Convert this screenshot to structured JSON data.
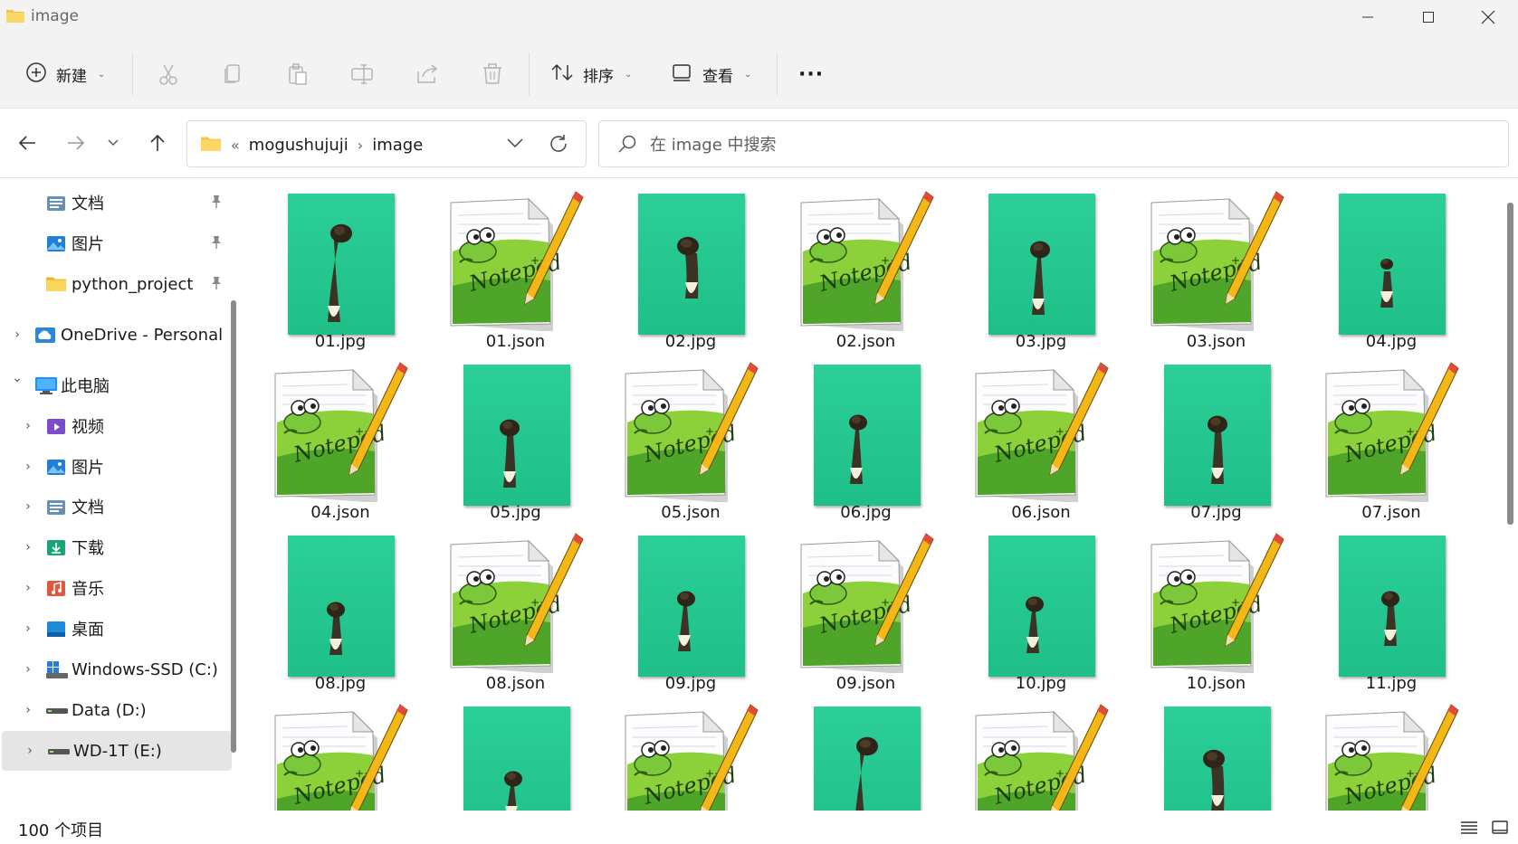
{
  "window": {
    "title": "image"
  },
  "toolbar": {
    "new_label": "新建",
    "sort_label": "排序",
    "view_label": "查看",
    "more_label": "···"
  },
  "address": {
    "overflow": "«",
    "crumbs": [
      "mogushujuji",
      "image"
    ]
  },
  "search": {
    "placeholder": "在 image 中搜索"
  },
  "nav": {
    "items": [
      {
        "label": "文档",
        "icon": "documents-icon",
        "pinned": true,
        "expandable": false
      },
      {
        "label": "图片",
        "icon": "pictures-icon",
        "pinned": true,
        "expandable": false
      },
      {
        "label": "python_project",
        "icon": "folder-icon",
        "pinned": true,
        "expandable": false
      },
      {
        "label": "OneDrive - Personal",
        "icon": "onedrive-icon",
        "pinned": false,
        "expandable": true
      },
      {
        "label": "此电脑",
        "icon": "this-pc-icon",
        "pinned": false,
        "expandable": true,
        "expanded": true
      },
      {
        "label": "视频",
        "icon": "videos-icon",
        "pinned": false,
        "expandable": true
      },
      {
        "label": "图片",
        "icon": "pictures-icon",
        "pinned": false,
        "expandable": true
      },
      {
        "label": "文档",
        "icon": "documents-icon",
        "pinned": false,
        "expandable": true
      },
      {
        "label": "下载",
        "icon": "downloads-icon",
        "pinned": false,
        "expandable": true
      },
      {
        "label": "音乐",
        "icon": "music-icon",
        "pinned": false,
        "expandable": true
      },
      {
        "label": "桌面",
        "icon": "desktop-icon",
        "pinned": false,
        "expandable": true
      },
      {
        "label": "Windows-SSD (C:)",
        "icon": "windows-drive-icon",
        "pinned": false,
        "expandable": true
      },
      {
        "label": "Data (D:)",
        "icon": "drive-icon",
        "pinned": false,
        "expandable": true
      },
      {
        "label": "WD-1T (E:)",
        "icon": "drive-icon",
        "pinned": false,
        "expandable": true,
        "selected": true
      }
    ]
  },
  "files": [
    {
      "name": "01.jpg",
      "type": "jpg"
    },
    {
      "name": "01.json",
      "type": "json"
    },
    {
      "name": "02.jpg",
      "type": "jpg"
    },
    {
      "name": "02.json",
      "type": "json"
    },
    {
      "name": "03.jpg",
      "type": "jpg"
    },
    {
      "name": "03.json",
      "type": "json"
    },
    {
      "name": "04.jpg",
      "type": "jpg"
    },
    {
      "name": "04.json",
      "type": "json"
    },
    {
      "name": "05.jpg",
      "type": "jpg"
    },
    {
      "name": "05.json",
      "type": "json"
    },
    {
      "name": "06.jpg",
      "type": "jpg"
    },
    {
      "name": "06.json",
      "type": "json"
    },
    {
      "name": "07.jpg",
      "type": "jpg"
    },
    {
      "name": "07.json",
      "type": "json"
    },
    {
      "name": "08.jpg",
      "type": "jpg"
    },
    {
      "name": "08.json",
      "type": "json"
    },
    {
      "name": "09.jpg",
      "type": "jpg"
    },
    {
      "name": "09.json",
      "type": "json"
    },
    {
      "name": "10.jpg",
      "type": "jpg"
    },
    {
      "name": "10.json",
      "type": "json"
    },
    {
      "name": "11.jpg",
      "type": "jpg"
    },
    {
      "name": "",
      "type": "json"
    },
    {
      "name": "",
      "type": "jpg"
    },
    {
      "name": "",
      "type": "json"
    },
    {
      "name": "",
      "type": "jpg"
    },
    {
      "name": "",
      "type": "json"
    },
    {
      "name": "",
      "type": "jpg"
    },
    {
      "name": "",
      "type": "json"
    }
  ],
  "status": {
    "item_count": "100 个项目"
  },
  "colors": {
    "accent": "#0067c0",
    "photo_bg": "#22c58d",
    "folder": "#f8c542"
  }
}
